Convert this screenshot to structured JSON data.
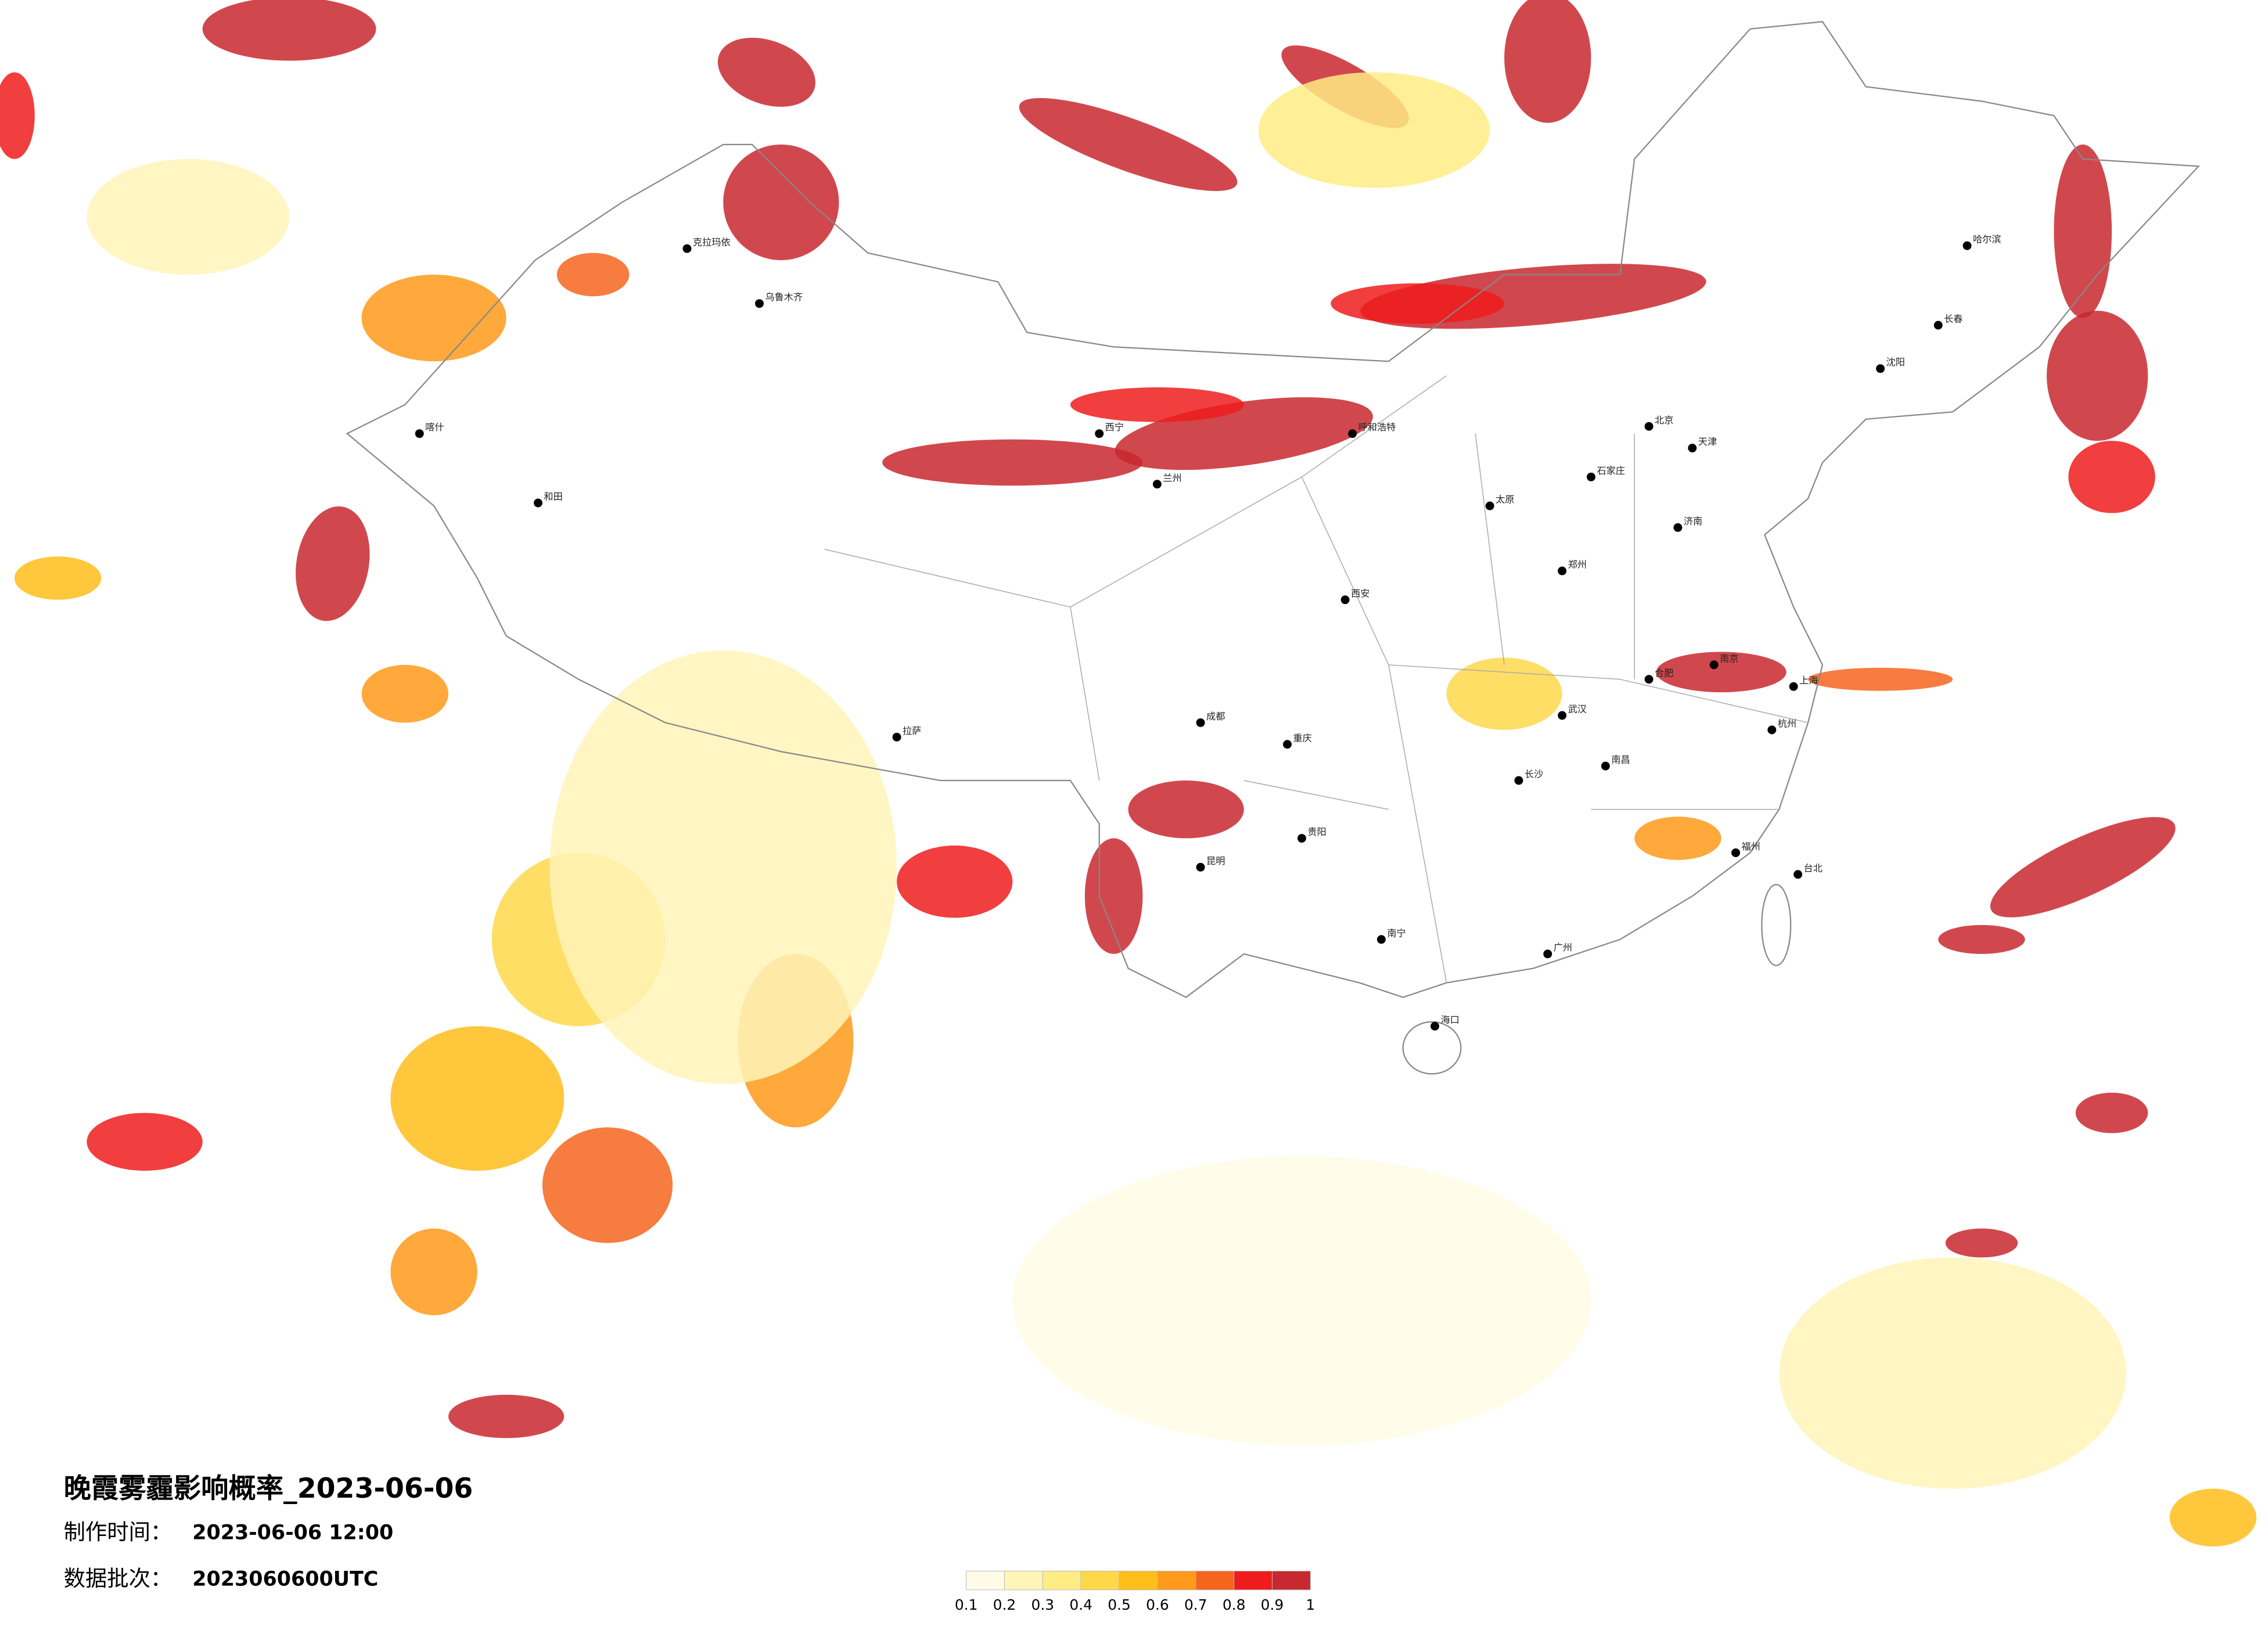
{
  "title": "晚霞雾霾影响概率_2023-06-06",
  "info": [
    {
      "label": "制作时间：",
      "value": "2023-06-06 12:00"
    },
    {
      "label": "数据批次：",
      "value": "2023060600UTC"
    }
  ],
  "legend": {
    "colors": [
      "#fffbe6",
      "#fff5b8",
      "#ffec85",
      "#ffd84a",
      "#ffbe1a",
      "#ff9a1a",
      "#f5651e",
      "#ee1c1c",
      "#c8282f"
    ],
    "ticks": [
      0.1,
      0.2,
      0.3,
      0.4,
      0.5,
      0.6,
      0.7,
      0.8,
      0.9,
      1
    ]
  },
  "cities": [
    "克拉玛依",
    "乌鲁木齐",
    "喀什",
    "和田",
    "拉萨",
    "西宁",
    "兰州",
    "呼和浩特",
    "北京",
    "天津",
    "哈尔滨",
    "长春",
    "沈阳",
    "石家庄",
    "太原",
    "西安",
    "郑州",
    "济南",
    "南京",
    "上海",
    "杭州",
    "合肥",
    "武汉",
    "长沙",
    "南昌",
    "福州",
    "广州",
    "南宁",
    "昆明",
    "贵阳",
    "重庆",
    "成都",
    "海口",
    "台北"
  ]
}
